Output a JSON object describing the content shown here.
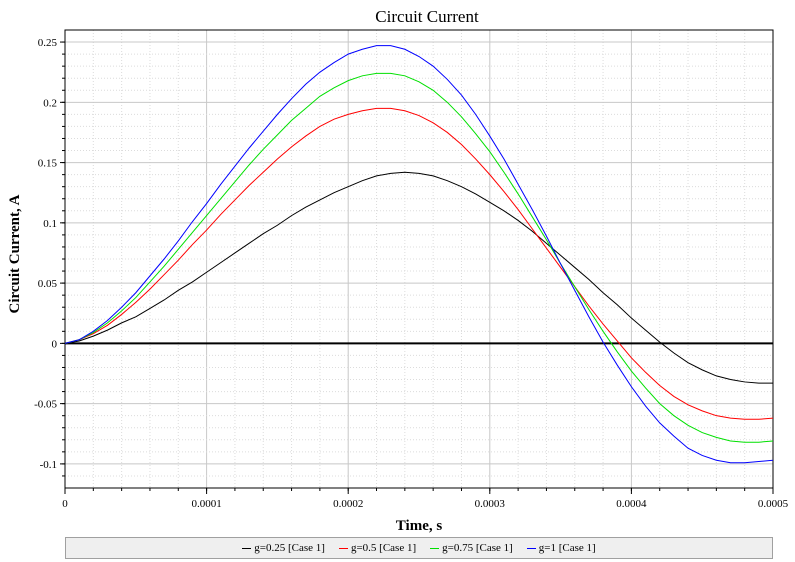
{
  "chart_data": {
    "type": "line",
    "title": "Circuit Current",
    "xlabel": "Time, s",
    "ylabel": "Circuit Current, A",
    "xlim": [
      0,
      0.0005
    ],
    "ylim": [
      -0.12,
      0.26
    ],
    "x_ticks": [
      0,
      0.0001,
      0.0002,
      0.0003,
      0.0004,
      0.0005
    ],
    "x_tick_labels": [
      "0",
      "0.0001",
      "0.0002",
      "0.0003",
      "0.0004",
      "0.0005"
    ],
    "y_ticks": [
      -0.1,
      -0.05,
      0,
      0.05,
      0.1,
      0.15,
      0.2,
      0.25
    ],
    "y_tick_labels": [
      "-0.1",
      "-0.05",
      "0",
      "0.05",
      "0.1",
      "0.15",
      "0.2",
      "0.25"
    ],
    "grid": true,
    "legend_position": "bottom",
    "x": [
      0,
      1e-05,
      2e-05,
      3e-05,
      4e-05,
      5e-05,
      6e-05,
      7e-05,
      8e-05,
      9e-05,
      0.0001,
      0.00011,
      0.00012,
      0.00013,
      0.00014,
      0.00015,
      0.00016,
      0.00017,
      0.00018,
      0.00019,
      0.0002,
      0.00021,
      0.00022,
      0.00023,
      0.00024,
      0.00025,
      0.00026,
      0.00027,
      0.00028,
      0.00029,
      0.0003,
      0.00031,
      0.00032,
      0.00033,
      0.00034,
      0.00035,
      0.00036,
      0.00037,
      0.00038,
      0.00039,
      0.0004,
      0.00041,
      0.00042,
      0.00043,
      0.00044,
      0.00045,
      0.00046,
      0.00047,
      0.00048,
      0.00049,
      0.0005
    ],
    "series": [
      {
        "name": "g=0.25 [Case 1]",
        "color": "#000000",
        "values": [
          0,
          0.002,
          0.006,
          0.011,
          0.017,
          0.022,
          0.029,
          0.036,
          0.044,
          0.051,
          0.059,
          0.067,
          0.075,
          0.083,
          0.091,
          0.098,
          0.106,
          0.113,
          0.119,
          0.125,
          0.13,
          0.135,
          0.139,
          0.141,
          0.142,
          0.141,
          0.139,
          0.135,
          0.13,
          0.124,
          0.117,
          0.11,
          0.102,
          0.093,
          0.083,
          0.073,
          0.063,
          0.053,
          0.042,
          0.032,
          0.021,
          0.011,
          0.001,
          -0.008,
          -0.016,
          -0.022,
          -0.027,
          -0.03,
          -0.032,
          -0.033,
          -0.033
        ]
      },
      {
        "name": "g=0.5 [Case 1]",
        "color": "#ff0000",
        "values": [
          0,
          0.003,
          0.008,
          0.015,
          0.024,
          0.034,
          0.045,
          0.057,
          0.069,
          0.082,
          0.094,
          0.107,
          0.119,
          0.131,
          0.142,
          0.153,
          0.163,
          0.172,
          0.18,
          0.186,
          0.19,
          0.193,
          0.195,
          0.195,
          0.193,
          0.189,
          0.183,
          0.175,
          0.165,
          0.153,
          0.14,
          0.126,
          0.111,
          0.095,
          0.079,
          0.063,
          0.047,
          0.031,
          0.016,
          0.002,
          -0.012,
          -0.024,
          -0.035,
          -0.044,
          -0.051,
          -0.056,
          -0.06,
          -0.062,
          -0.063,
          -0.063,
          -0.062
        ]
      },
      {
        "name": "g=0.75 [Case 1]",
        "color": "#00e000",
        "values": [
          0,
          0.003,
          0.009,
          0.017,
          0.027,
          0.038,
          0.051,
          0.064,
          0.078,
          0.092,
          0.106,
          0.12,
          0.134,
          0.148,
          0.161,
          0.173,
          0.185,
          0.195,
          0.205,
          0.212,
          0.218,
          0.222,
          0.224,
          0.224,
          0.222,
          0.217,
          0.21,
          0.2,
          0.188,
          0.174,
          0.159,
          0.142,
          0.124,
          0.105,
          0.086,
          0.066,
          0.047,
          0.028,
          0.01,
          -0.007,
          -0.023,
          -0.037,
          -0.05,
          -0.06,
          -0.068,
          -0.074,
          -0.078,
          -0.081,
          -0.082,
          -0.082,
          -0.081
        ]
      },
      {
        "name": "g=1 [Case 1]",
        "color": "#0000ff",
        "values": [
          0,
          0.003,
          0.01,
          0.019,
          0.03,
          0.042,
          0.056,
          0.07,
          0.085,
          0.101,
          0.116,
          0.132,
          0.147,
          0.162,
          0.176,
          0.19,
          0.203,
          0.215,
          0.225,
          0.233,
          0.24,
          0.244,
          0.247,
          0.247,
          0.244,
          0.238,
          0.23,
          0.219,
          0.206,
          0.19,
          0.172,
          0.153,
          0.132,
          0.111,
          0.089,
          0.066,
          0.044,
          0.022,
          0.001,
          -0.018,
          -0.036,
          -0.052,
          -0.066,
          -0.077,
          -0.087,
          -0.093,
          -0.097,
          -0.099,
          -0.099,
          -0.098,
          -0.097
        ]
      }
    ]
  }
}
